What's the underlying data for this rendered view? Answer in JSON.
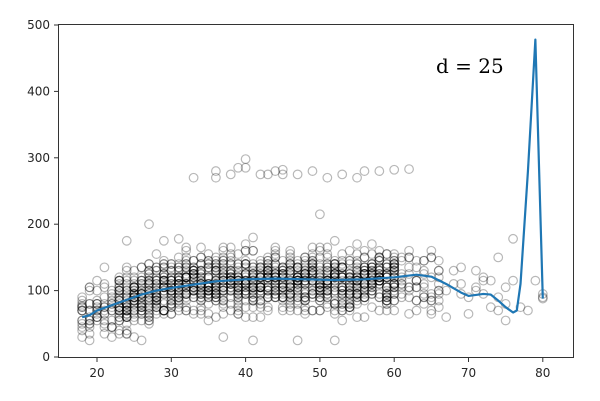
{
  "chart_data": {
    "type": "scatter",
    "title": "",
    "xlabel": "",
    "ylabel": "",
    "xlim": [
      16.5,
      82.5
    ],
    "ylim": [
      0,
      500
    ],
    "grid": false,
    "x_ticks": [
      20,
      30,
      40,
      50,
      60,
      70,
      80
    ],
    "y_ticks": [
      0,
      100,
      200,
      300,
      400,
      500
    ],
    "annotation": "d = 25",
    "series": [
      {
        "name": "observations",
        "type": "scatter",
        "marker": "hollow-circle",
        "color": "#000000",
        "alpha": 0.25,
        "description": "Dense cloud of points for x in 18-80, mostly y 30-220, with a band of outliers near y 270-300 for x 33-62"
      },
      {
        "name": "polynomial fit (degree 25)",
        "type": "line",
        "color": "#1f77b4",
        "x": [
          18,
          19,
          20,
          22,
          24,
          26,
          28,
          30,
          33,
          36,
          40,
          44,
          48,
          52,
          56,
          60,
          63,
          65,
          67,
          69,
          70,
          72,
          73,
          74,
          75,
          76,
          76.5,
          77,
          78,
          79,
          80
        ],
        "y": [
          60,
          63,
          70,
          78,
          86,
          94,
          100,
          104,
          109,
          114,
          117,
          118,
          117,
          116,
          117,
          120,
          124,
          121,
          110,
          97,
          92,
          95,
          94,
          85,
          75,
          67,
          70,
          110,
          280,
          478,
          88
        ]
      }
    ]
  },
  "labels": {
    "annotation": "d = 25",
    "x_ticks": [
      "20",
      "30",
      "40",
      "50",
      "60",
      "70",
      "80"
    ],
    "y_ticks": [
      "0",
      "100",
      "200",
      "300",
      "400",
      "500"
    ]
  }
}
